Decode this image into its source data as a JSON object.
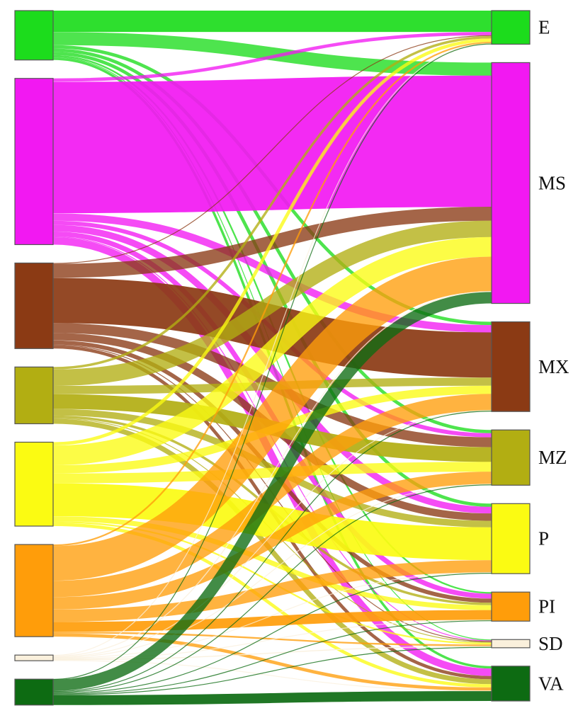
{
  "nodes": [
    {
      "id": "E",
      "label": "E",
      "color": "#1cdc1c"
    },
    {
      "id": "MS",
      "label": "MS",
      "color": "#f218f2"
    },
    {
      "id": "MX",
      "label": "MX",
      "color": "#8b3a14"
    },
    {
      "id": "MZ",
      "label": "MZ",
      "color": "#b2ae12"
    },
    {
      "id": "P",
      "label": "P",
      "color": "#fbfb12"
    },
    {
      "id": "PI",
      "label": "PI",
      "color": "#ff9d0a"
    },
    {
      "id": "SD",
      "label": "SD",
      "color": "#faf0dc"
    },
    {
      "id": "VA",
      "label": "VA",
      "color": "#0d6b12"
    }
  ],
  "flows": [
    [
      "E",
      "E",
      26
    ],
    [
      "E",
      "MS",
      16
    ],
    [
      "E",
      "MX",
      4
    ],
    [
      "E",
      "MZ",
      4
    ],
    [
      "E",
      "P",
      4
    ],
    [
      "E",
      "PI",
      2
    ],
    [
      "E",
      "SD",
      1
    ],
    [
      "E",
      "VA",
      3
    ],
    [
      "MS",
      "E",
      4
    ],
    [
      "MS",
      "MS",
      160
    ],
    [
      "MS",
      "MX",
      9
    ],
    [
      "MS",
      "MZ",
      5
    ],
    [
      "MS",
      "P",
      8
    ],
    [
      "MS",
      "PI",
      6
    ],
    [
      "MS",
      "SD",
      1
    ],
    [
      "MS",
      "VA",
      9
    ],
    [
      "MX",
      "E",
      1
    ],
    [
      "MX",
      "MS",
      17
    ],
    [
      "MX",
      "MX",
      55
    ],
    [
      "MX",
      "MZ",
      12
    ],
    [
      "MX",
      "P",
      9
    ],
    [
      "MX",
      "PI",
      5
    ],
    [
      "MX",
      "SD",
      1
    ],
    [
      "MX",
      "VA",
      4
    ],
    [
      "MZ",
      "E",
      3
    ],
    [
      "MZ",
      "MS",
      20
    ],
    [
      "MZ",
      "MX",
      10
    ],
    [
      "MZ",
      "MZ",
      18
    ],
    [
      "MZ",
      "P",
      8
    ],
    [
      "MZ",
      "PI",
      3
    ],
    [
      "MZ",
      "SD",
      1
    ],
    [
      "MZ",
      "VA",
      6
    ],
    [
      "P",
      "E",
      4
    ],
    [
      "P",
      "MS",
      24
    ],
    [
      "P",
      "MX",
      10
    ],
    [
      "P",
      "MZ",
      12
    ],
    [
      "P",
      "P",
      40
    ],
    [
      "P",
      "PI",
      6
    ],
    [
      "P",
      "SD",
      2
    ],
    [
      "P",
      "VA",
      4
    ],
    [
      "PI",
      "E",
      2
    ],
    [
      "PI",
      "MS",
      42
    ],
    [
      "PI",
      "MX",
      20
    ],
    [
      "PI",
      "MZ",
      15
    ],
    [
      "PI",
      "P",
      15
    ],
    [
      "PI",
      "PI",
      12
    ],
    [
      "PI",
      "SD",
      2
    ],
    [
      "PI",
      "VA",
      4
    ],
    [
      "SD",
      "E",
      0.5
    ],
    [
      "SD",
      "MS",
      1
    ],
    [
      "SD",
      "MX",
      0.5
    ],
    [
      "SD",
      "MZ",
      0.5
    ],
    [
      "SD",
      "P",
      0.5
    ],
    [
      "SD",
      "PI",
      0.5
    ],
    [
      "SD",
      "SD",
      1
    ],
    [
      "SD",
      "VA",
      0.5
    ],
    [
      "VA",
      "E",
      0.5
    ],
    [
      "VA",
      "MS",
      14
    ],
    [
      "VA",
      "MX",
      1
    ],
    [
      "VA",
      "MZ",
      1
    ],
    [
      "VA",
      "P",
      1
    ],
    [
      "VA",
      "PI",
      1
    ],
    [
      "VA",
      "SD",
      1
    ],
    [
      "VA",
      "VA",
      12
    ]
  ]
}
